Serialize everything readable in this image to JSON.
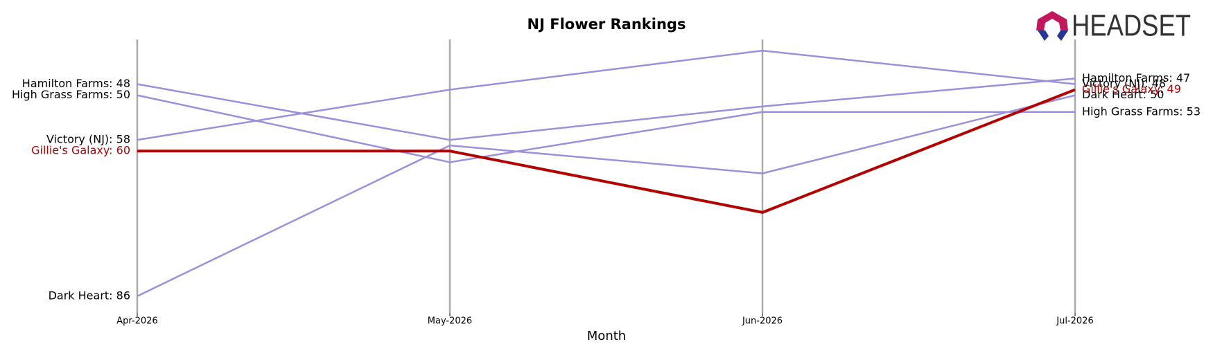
{
  "chart_data": {
    "type": "bump",
    "title": "NJ Flower Rankings",
    "x_label": "Month",
    "logo_text": "HEADSET",
    "categories": [
      "Apr-2026",
      "May-2026",
      "Jun-2026",
      "Jul-2026"
    ],
    "ylim": [
      89,
      40
    ],
    "inverted": true,
    "grid": true,
    "series": [
      {
        "name": "Hamilton Farms",
        "color": "#9d8fdb",
        "values": [
          48,
          58,
          52,
          47
        ],
        "start_label": "Hamilton Farms: 48",
        "end_label": "Hamilton Farms: 47"
      },
      {
        "name": "High Grass Farms",
        "color": "#9d8fdb",
        "values": [
          50,
          62,
          53,
          53
        ],
        "start_label": "High Grass Farms: 50",
        "end_label": "High Grass Farms: 53"
      },
      {
        "name": "Victory (NJ)",
        "color": "#9d8fdb",
        "values": [
          58,
          49,
          42,
          48
        ],
        "start_label": "Victory (NJ): 58",
        "end_label": "Victory (NJ): 48"
      },
      {
        "name": "Dark Heart",
        "color": "#9d8fdb",
        "values": [
          86,
          59,
          64,
          50
        ],
        "start_label": "Dark Heart: 86",
        "end_label": "Dark Heart: 50"
      },
      {
        "name": "Gillie's Galaxy",
        "color": "#b30000",
        "values": [
          60,
          60,
          71,
          49
        ],
        "start_label": "Gillie's Galaxy: 60",
        "end_label": "Gillie's Galaxy: 49"
      }
    ]
  }
}
